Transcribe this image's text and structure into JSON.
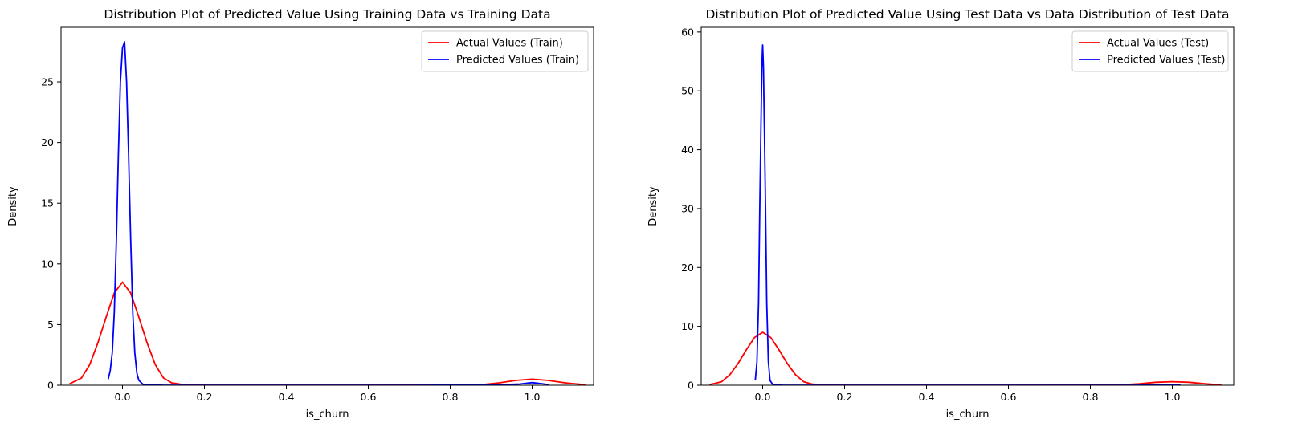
{
  "chart_data": [
    {
      "type": "line",
      "title": "Distribution Plot of Predicted Value Using Training Data vs Training Data",
      "xlabel": "is_churn",
      "ylabel": "Density",
      "xlim": [
        -0.15,
        1.15
      ],
      "ylim": [
        0,
        29.5
      ],
      "xticks": [
        0.0,
        0.2,
        0.4,
        0.6,
        0.8,
        1.0
      ],
      "xtick_labels": [
        "0.0",
        "0.2",
        "0.4",
        "0.6",
        "0.8",
        "1.0"
      ],
      "yticks": [
        0,
        5,
        10,
        15,
        20,
        25
      ],
      "ytick_labels": [
        "0",
        "5",
        "10",
        "15",
        "20",
        "25"
      ],
      "grid": false,
      "legend_position": "top-right",
      "series": [
        {
          "name": "Actual Values (Train)",
          "color": "#ff0000",
          "x": [
            -0.13,
            -0.1,
            -0.08,
            -0.06,
            -0.04,
            -0.02,
            0.0,
            0.02,
            0.04,
            0.06,
            0.08,
            0.1,
            0.12,
            0.15,
            0.2,
            0.4,
            0.6,
            0.8,
            0.88,
            0.92,
            0.96,
            1.0,
            1.04,
            1.08,
            1.13
          ],
          "y": [
            0.1,
            0.6,
            1.7,
            3.5,
            5.6,
            7.6,
            8.5,
            7.6,
            5.6,
            3.5,
            1.7,
            0.6,
            0.2,
            0.04,
            0.0,
            0.0,
            0.0,
            0.02,
            0.06,
            0.2,
            0.4,
            0.5,
            0.4,
            0.2,
            0.04
          ]
        },
        {
          "name": "Predicted Values (Train)",
          "color": "#0000ff",
          "x": [
            -0.035,
            -0.03,
            -0.025,
            -0.02,
            -0.015,
            -0.01,
            -0.005,
            0.0,
            0.005,
            0.01,
            0.015,
            0.02,
            0.025,
            0.03,
            0.035,
            0.04,
            0.05,
            0.1,
            0.3,
            0.5,
            0.7,
            0.9,
            0.97,
            1.0,
            1.03,
            1.04
          ],
          "y": [
            0.5,
            1.2,
            2.7,
            6.0,
            12.0,
            19.0,
            25.0,
            27.8,
            28.3,
            25.0,
            19.0,
            12.0,
            6.0,
            2.7,
            1.0,
            0.4,
            0.08,
            0.0,
            0.0,
            0.0,
            0.0,
            0.02,
            0.1,
            0.22,
            0.1,
            0.02
          ]
        }
      ]
    },
    {
      "type": "line",
      "title": "Distribution Plot of Predicted Value Using Test Data vs Data Distribution of Test Data",
      "xlabel": "is_churn",
      "ylabel": "Density",
      "xlim": [
        -0.15,
        1.15
      ],
      "ylim": [
        0,
        60.8
      ],
      "xticks": [
        0.0,
        0.2,
        0.4,
        0.6,
        0.8,
        1.0
      ],
      "xtick_labels": [
        "0.0",
        "0.2",
        "0.4",
        "0.6",
        "0.8",
        "1.0"
      ],
      "yticks": [
        0,
        10,
        20,
        30,
        40,
        50,
        60
      ],
      "ytick_labels": [
        "0",
        "10",
        "20",
        "30",
        "40",
        "50",
        "60"
      ],
      "grid": false,
      "legend_position": "top-right",
      "series": [
        {
          "name": "Actual Values (Test)",
          "color": "#ff0000",
          "x": [
            -0.13,
            -0.1,
            -0.08,
            -0.06,
            -0.04,
            -0.02,
            0.0,
            0.02,
            0.04,
            0.06,
            0.08,
            0.1,
            0.12,
            0.15,
            0.2,
            0.4,
            0.6,
            0.8,
            0.88,
            0.92,
            0.96,
            1.0,
            1.04,
            1.08,
            1.12
          ],
          "y": [
            0.1,
            0.6,
            1.8,
            3.7,
            6.0,
            8.1,
            9.0,
            8.1,
            6.0,
            3.7,
            1.8,
            0.6,
            0.2,
            0.04,
            0.0,
            0.0,
            0.0,
            0.02,
            0.08,
            0.25,
            0.5,
            0.6,
            0.5,
            0.25,
            0.05
          ]
        },
        {
          "name": "Predicted Values (Test)",
          "color": "#0000ff",
          "x": [
            -0.018,
            -0.014,
            -0.01,
            -0.007,
            -0.004,
            -0.002,
            0.0,
            0.002,
            0.004,
            0.007,
            0.01,
            0.014,
            0.018,
            0.025,
            0.05,
            0.3,
            0.6,
            0.9,
            0.98,
            1.0,
            1.02
          ],
          "y": [
            0.8,
            4.0,
            14.0,
            30.0,
            45.0,
            54.0,
            57.8,
            54.0,
            45.0,
            30.0,
            14.0,
            4.0,
            0.8,
            0.1,
            0.0,
            0.0,
            0.0,
            0.0,
            0.05,
            0.1,
            0.05
          ]
        }
      ]
    }
  ]
}
